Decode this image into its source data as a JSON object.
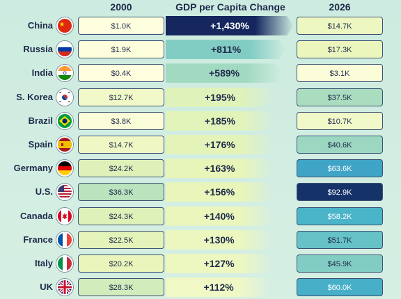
{
  "headers": {
    "year_start": "2000",
    "change": "GDP per Capita Change",
    "year_end": "2026"
  },
  "chart_data": {
    "type": "table",
    "columns": [
      "2000",
      "GDP per Capita Change",
      "2026"
    ],
    "rows": [
      {
        "country": "China",
        "flag": "china-flag-icon",
        "v2000": "$1.0K",
        "change": "+1,430%",
        "change_pct": 1430,
        "v2026": "$14.7K",
        "v2026_num": 14.7,
        "v2000_num": 1.0
      },
      {
        "country": "Russia",
        "flag": "russia-flag-icon",
        "v2000": "$1.9K",
        "change": "+811%",
        "change_pct": 811,
        "v2026": "$17.3K",
        "v2026_num": 17.3,
        "v2000_num": 1.9
      },
      {
        "country": "India",
        "flag": "india-flag-icon",
        "v2000": "$0.4K",
        "change": "+589%",
        "change_pct": 589,
        "v2026": "$3.1K",
        "v2026_num": 3.1,
        "v2000_num": 0.4
      },
      {
        "country": "S. Korea",
        "flag": "south-korea-flag-icon",
        "v2000": "$12.7K",
        "change": "+195%",
        "change_pct": 195,
        "v2026": "$37.5K",
        "v2026_num": 37.5,
        "v2000_num": 12.7
      },
      {
        "country": "Brazil",
        "flag": "brazil-flag-icon",
        "v2000": "$3.8K",
        "change": "+185%",
        "change_pct": 185,
        "v2026": "$10.7K",
        "v2026_num": 10.7,
        "v2000_num": 3.8
      },
      {
        "country": "Spain",
        "flag": "spain-flag-icon",
        "v2000": "$14.7K",
        "change": "+176%",
        "change_pct": 176,
        "v2026": "$40.6K",
        "v2026_num": 40.6,
        "v2000_num": 14.7
      },
      {
        "country": "Germany",
        "flag": "germany-flag-icon",
        "v2000": "$24.2K",
        "change": "+163%",
        "change_pct": 163,
        "v2026": "$63.6K",
        "v2026_num": 63.6,
        "v2000_num": 24.2
      },
      {
        "country": "U.S.",
        "flag": "us-flag-icon",
        "v2000": "$36.3K",
        "change": "+156%",
        "change_pct": 156,
        "v2026": "$92.9K",
        "v2026_num": 92.9,
        "v2000_num": 36.3
      },
      {
        "country": "Canada",
        "flag": "canada-flag-icon",
        "v2000": "$24.3K",
        "change": "+140%",
        "change_pct": 140,
        "v2026": "$58.2K",
        "v2026_num": 58.2,
        "v2000_num": 24.3
      },
      {
        "country": "France",
        "flag": "france-flag-icon",
        "v2000": "$22.5K",
        "change": "+130%",
        "change_pct": 130,
        "v2026": "$51.7K",
        "v2026_num": 51.7,
        "v2000_num": 22.5
      },
      {
        "country": "Italy",
        "flag": "italy-flag-icon",
        "v2000": "$20.2K",
        "change": "+127%",
        "change_pct": 127,
        "v2026": "$45.9K",
        "v2026_num": 45.9,
        "v2000_num": 20.2
      },
      {
        "country": "UK",
        "flag": "uk-flag-icon",
        "v2000": "$28.3K",
        "change": "+112%",
        "change_pct": 112,
        "v2026": "$60.0K",
        "v2026_num": 60.0,
        "v2000_num": 28.3
      }
    ]
  }
}
